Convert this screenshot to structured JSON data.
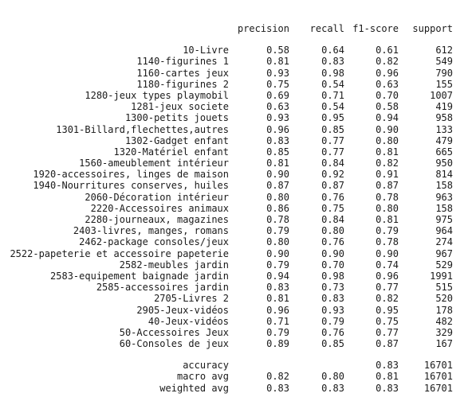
{
  "headers": [
    "precision",
    "recall",
    "f1-score",
    "support"
  ],
  "rows": [
    {
      "label": "10-Livre",
      "precision": "0.58",
      "recall": "0.64",
      "f1": "0.61",
      "support": "612"
    },
    {
      "label": "1140-figurines 1",
      "precision": "0.81",
      "recall": "0.83",
      "f1": "0.82",
      "support": "549"
    },
    {
      "label": "1160-cartes jeux",
      "precision": "0.93",
      "recall": "0.98",
      "f1": "0.96",
      "support": "790"
    },
    {
      "label": "1180-figurines 2",
      "precision": "0.75",
      "recall": "0.54",
      "f1": "0.63",
      "support": "155"
    },
    {
      "label": "1280-jeux types playmobil",
      "precision": "0.69",
      "recall": "0.71",
      "f1": "0.70",
      "support": "1007"
    },
    {
      "label": "1281-jeux societe",
      "precision": "0.63",
      "recall": "0.54",
      "f1": "0.58",
      "support": "419"
    },
    {
      "label": "1300-petits jouets",
      "precision": "0.93",
      "recall": "0.95",
      "f1": "0.94",
      "support": "958"
    },
    {
      "label": "1301-Billard,flechettes,autres",
      "precision": "0.96",
      "recall": "0.85",
      "f1": "0.90",
      "support": "133"
    },
    {
      "label": "1302-Gadget enfant",
      "precision": "0.83",
      "recall": "0.77",
      "f1": "0.80",
      "support": "479"
    },
    {
      "label": "1320-Matériel enfant",
      "precision": "0.85",
      "recall": "0.77",
      "f1": "0.81",
      "support": "665"
    },
    {
      "label": "1560-ameublement intérieur",
      "precision": "0.81",
      "recall": "0.84",
      "f1": "0.82",
      "support": "950"
    },
    {
      "label": "1920-accessoires, linges de maison",
      "precision": "0.90",
      "recall": "0.92",
      "f1": "0.91",
      "support": "814"
    },
    {
      "label": "1940-Nourritures conserves, huiles",
      "precision": "0.87",
      "recall": "0.87",
      "f1": "0.87",
      "support": "158"
    },
    {
      "label": "2060-Décoration intérieur",
      "precision": "0.80",
      "recall": "0.76",
      "f1": "0.78",
      "support": "963"
    },
    {
      "label": "2220-Accessoires animaux",
      "precision": "0.86",
      "recall": "0.75",
      "f1": "0.80",
      "support": "158"
    },
    {
      "label": "2280-journeaux, magazines",
      "precision": "0.78",
      "recall": "0.84",
      "f1": "0.81",
      "support": "975"
    },
    {
      "label": "2403-livres, manges, romans",
      "precision": "0.79",
      "recall": "0.80",
      "f1": "0.79",
      "support": "964"
    },
    {
      "label": "2462-package consoles/jeux",
      "precision": "0.80",
      "recall": "0.76",
      "f1": "0.78",
      "support": "274"
    },
    {
      "label": "2522-papeterie et accessoire papeterie",
      "precision": "0.90",
      "recall": "0.90",
      "f1": "0.90",
      "support": "967"
    },
    {
      "label": "2582-meubles jardin",
      "precision": "0.79",
      "recall": "0.70",
      "f1": "0.74",
      "support": "529"
    },
    {
      "label": "2583-equipement baignade jardin",
      "precision": "0.94",
      "recall": "0.98",
      "f1": "0.96",
      "support": "1991"
    },
    {
      "label": "2585-accessoires jardin",
      "precision": "0.83",
      "recall": "0.73",
      "f1": "0.77",
      "support": "515"
    },
    {
      "label": "2705-Livres 2",
      "precision": "0.81",
      "recall": "0.83",
      "f1": "0.82",
      "support": "520"
    },
    {
      "label": "2905-Jeux-vidéos",
      "precision": "0.96",
      "recall": "0.93",
      "f1": "0.95",
      "support": "178"
    },
    {
      "label": "40-Jeux-vidéos",
      "precision": "0.71",
      "recall": "0.79",
      "f1": "0.75",
      "support": "482"
    },
    {
      "label": "50-Accessoires Jeux",
      "precision": "0.79",
      "recall": "0.76",
      "f1": "0.77",
      "support": "329"
    },
    {
      "label": "60-Consoles de jeux",
      "precision": "0.89",
      "recall": "0.85",
      "f1": "0.87",
      "support": "167"
    }
  ],
  "summary": [
    {
      "label": "accuracy",
      "precision": "",
      "recall": "",
      "f1": "0.83",
      "support": "16701"
    },
    {
      "label": "macro avg",
      "precision": "0.82",
      "recall": "0.80",
      "f1": "0.81",
      "support": "16701"
    },
    {
      "label": "weighted avg",
      "precision": "0.83",
      "recall": "0.83",
      "f1": "0.83",
      "support": "16701"
    }
  ]
}
